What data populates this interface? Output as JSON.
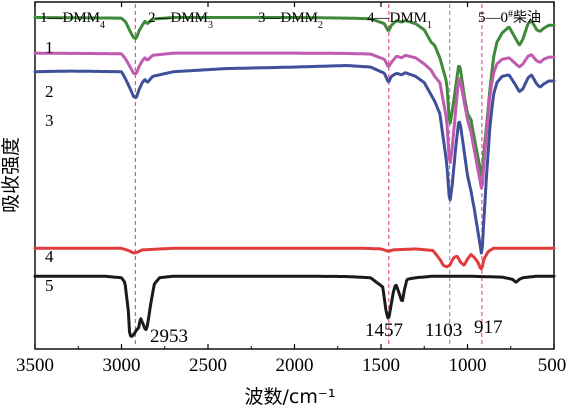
{
  "chart_data": {
    "type": "line",
    "xlabel": "波数/cm⁻¹",
    "ylabel": "吸收强度",
    "xlim": [
      3500,
      500
    ],
    "x_reversed": true,
    "xticks": [
      3500,
      3000,
      2500,
      2000,
      1500,
      1000,
      500
    ],
    "grid": false,
    "legend": [
      {
        "num": "1",
        "name": "DMM",
        "sub": "4"
      },
      {
        "num": "2",
        "name": "DMM",
        "sub": "3"
      },
      {
        "num": "3",
        "name": "DMM",
        "sub": "2"
      },
      {
        "num": "4",
        "name": "DMM",
        "sub": "1"
      },
      {
        "num": "5",
        "name": "0",
        "sup": "#",
        "suffix": "柴油"
      }
    ],
    "reference_lines": [
      {
        "x": 2920,
        "color": "#e0458a"
      },
      {
        "x": 1455,
        "color": "#e0458a"
      },
      {
        "x": 1103,
        "color": "#9a7fe0"
      },
      {
        "x": 917,
        "color": "#e0458a"
      }
    ],
    "peak_labels": [
      {
        "text": "2953",
        "x": 2953
      },
      {
        "text": "1457",
        "x": 1457
      },
      {
        "text": "1103",
        "x": 1103
      },
      {
        "text": "917",
        "x": 917
      }
    ],
    "series": [
      {
        "label": "1",
        "color": "#3f8a3a",
        "baseline": 0.95,
        "points": [
          [
            3500,
            0.95
          ],
          [
            3000,
            0.948
          ],
          [
            2975,
            0.935
          ],
          [
            2950,
            0.905
          ],
          [
            2930,
            0.885
          ],
          [
            2915,
            0.882
          ],
          [
            2900,
            0.905
          ],
          [
            2880,
            0.925
          ],
          [
            2865,
            0.938
          ],
          [
            2850,
            0.93
          ],
          [
            2820,
            0.945
          ],
          [
            2700,
            0.95
          ],
          [
            2000,
            0.95
          ],
          [
            1700,
            0.948
          ],
          [
            1560,
            0.946
          ],
          [
            1480,
            0.93
          ],
          [
            1457,
            0.905
          ],
          [
            1440,
            0.925
          ],
          [
            1410,
            0.94
          ],
          [
            1380,
            0.935
          ],
          [
            1360,
            0.94
          ],
          [
            1300,
            0.93
          ],
          [
            1250,
            0.91
          ],
          [
            1210,
            0.87
          ],
          [
            1190,
            0.86
          ],
          [
            1160,
            0.82
          ],
          [
            1140,
            0.78
          ],
          [
            1120,
            0.74
          ],
          [
            1103,
            0.6
          ],
          [
            1090,
            0.64
          ],
          [
            1070,
            0.72
          ],
          [
            1050,
            0.8
          ],
          [
            1040,
            0.78
          ],
          [
            1020,
            0.7
          ],
          [
            1000,
            0.64
          ],
          [
            980,
            0.62
          ],
          [
            960,
            0.56
          ],
          [
            940,
            0.5
          ],
          [
            920,
            0.44
          ],
          [
            917,
            0.43
          ],
          [
            905,
            0.52
          ],
          [
            890,
            0.6
          ],
          [
            870,
            0.72
          ],
          [
            850,
            0.82
          ],
          [
            830,
            0.87
          ],
          [
            800,
            0.9
          ],
          [
            760,
            0.92
          ],
          [
            720,
            0.88
          ],
          [
            700,
            0.86
          ],
          [
            680,
            0.88
          ],
          [
            650,
            0.93
          ],
          [
            630,
            0.94
          ],
          [
            600,
            0.91
          ],
          [
            580,
            0.905
          ],
          [
            560,
            0.915
          ],
          [
            530,
            0.925
          ],
          [
            500,
            0.925
          ]
        ]
      },
      {
        "label": "2",
        "color": "#c05bb0",
        "baseline": 0.835,
        "points": [
          [
            3500,
            0.835
          ],
          [
            3000,
            0.833
          ],
          [
            2975,
            0.815
          ],
          [
            2950,
            0.79
          ],
          [
            2930,
            0.77
          ],
          [
            2915,
            0.768
          ],
          [
            2900,
            0.79
          ],
          [
            2880,
            0.81
          ],
          [
            2865,
            0.82
          ],
          [
            2850,
            0.812
          ],
          [
            2820,
            0.828
          ],
          [
            2700,
            0.835
          ],
          [
            2000,
            0.835
          ],
          [
            1700,
            0.834
          ],
          [
            1560,
            0.832
          ],
          [
            1480,
            0.815
          ],
          [
            1457,
            0.79
          ],
          [
            1440,
            0.805
          ],
          [
            1410,
            0.825
          ],
          [
            1380,
            0.82
          ],
          [
            1360,
            0.828
          ],
          [
            1300,
            0.82
          ],
          [
            1250,
            0.8
          ],
          [
            1210,
            0.78
          ],
          [
            1190,
            0.76
          ],
          [
            1160,
            0.74
          ],
          [
            1140,
            0.68
          ],
          [
            1120,
            0.62
          ],
          [
            1103,
            0.47
          ],
          [
            1090,
            0.52
          ],
          [
            1070,
            0.64
          ],
          [
            1050,
            0.76
          ],
          [
            1040,
            0.74
          ],
          [
            1020,
            0.68
          ],
          [
            1000,
            0.62
          ],
          [
            980,
            0.58
          ],
          [
            960,
            0.52
          ],
          [
            940,
            0.46
          ],
          [
            920,
            0.4
          ],
          [
            917,
            0.39
          ],
          [
            905,
            0.48
          ],
          [
            890,
            0.58
          ],
          [
            870,
            0.7
          ],
          [
            850,
            0.77
          ],
          [
            830,
            0.8
          ],
          [
            800,
            0.815
          ],
          [
            760,
            0.82
          ],
          [
            720,
            0.8
          ],
          [
            700,
            0.79
          ],
          [
            680,
            0.8
          ],
          [
            650,
            0.825
          ],
          [
            630,
            0.83
          ],
          [
            600,
            0.81
          ],
          [
            580,
            0.805
          ],
          [
            560,
            0.815
          ],
          [
            530,
            0.822
          ],
          [
            500,
            0.822
          ]
        ]
      },
      {
        "label": "3",
        "color": "#3f4f9a",
        "baseline": 0.775,
        "points": [
          [
            3500,
            0.775
          ],
          [
            3300,
            0.777
          ],
          [
            3000,
            0.775
          ],
          [
            2975,
            0.75
          ],
          [
            2950,
            0.72
          ],
          [
            2930,
            0.695
          ],
          [
            2915,
            0.69
          ],
          [
            2900,
            0.715
          ],
          [
            2880,
            0.74
          ],
          [
            2865,
            0.75
          ],
          [
            2850,
            0.74
          ],
          [
            2820,
            0.76
          ],
          [
            2700,
            0.775
          ],
          [
            2400,
            0.785
          ],
          [
            2000,
            0.79
          ],
          [
            1700,
            0.795
          ],
          [
            1560,
            0.79
          ],
          [
            1480,
            0.77
          ],
          [
            1457,
            0.74
          ],
          [
            1440,
            0.76
          ],
          [
            1410,
            0.77
          ],
          [
            1380,
            0.765
          ],
          [
            1360,
            0.772
          ],
          [
            1300,
            0.76
          ],
          [
            1250,
            0.74
          ],
          [
            1210,
            0.7
          ],
          [
            1190,
            0.68
          ],
          [
            1160,
            0.64
          ],
          [
            1140,
            0.56
          ],
          [
            1120,
            0.48
          ],
          [
            1103,
            0.35
          ],
          [
            1090,
            0.4
          ],
          [
            1070,
            0.52
          ],
          [
            1050,
            0.62
          ],
          [
            1040,
            0.6
          ],
          [
            1020,
            0.52
          ],
          [
            1000,
            0.44
          ],
          [
            980,
            0.39
          ],
          [
            960,
            0.33
          ],
          [
            940,
            0.26
          ],
          [
            920,
            0.19
          ],
          [
            917,
            0.18
          ],
          [
            905,
            0.3
          ],
          [
            890,
            0.44
          ],
          [
            870,
            0.6
          ],
          [
            850,
            0.7
          ],
          [
            830,
            0.74
          ],
          [
            800,
            0.76
          ],
          [
            760,
            0.765
          ],
          [
            720,
            0.73
          ],
          [
            700,
            0.71
          ],
          [
            680,
            0.72
          ],
          [
            650,
            0.755
          ],
          [
            630,
            0.765
          ],
          [
            600,
            0.735
          ],
          [
            580,
            0.725
          ],
          [
            560,
            0.735
          ],
          [
            530,
            0.745
          ],
          [
            500,
            0.745
          ]
        ]
      },
      {
        "label": "4",
        "color": "#e23b3b",
        "baseline": 0.205,
        "points": [
          [
            3500,
            0.205
          ],
          [
            3000,
            0.205
          ],
          [
            2960,
            0.198
          ],
          [
            2930,
            0.19
          ],
          [
            2910,
            0.192
          ],
          [
            2880,
            0.2
          ],
          [
            2700,
            0.205
          ],
          [
            2000,
            0.205
          ],
          [
            1600,
            0.205
          ],
          [
            1500,
            0.203
          ],
          [
            1457,
            0.195
          ],
          [
            1430,
            0.2
          ],
          [
            1300,
            0.203
          ],
          [
            1200,
            0.198
          ],
          [
            1160,
            0.17
          ],
          [
            1140,
            0.15
          ],
          [
            1120,
            0.145
          ],
          [
            1103,
            0.15
          ],
          [
            1080,
            0.175
          ],
          [
            1060,
            0.18
          ],
          [
            1040,
            0.16
          ],
          [
            1020,
            0.15
          ],
          [
            1000,
            0.17
          ],
          [
            980,
            0.185
          ],
          [
            960,
            0.175
          ],
          [
            940,
            0.16
          ],
          [
            925,
            0.14
          ],
          [
            917,
            0.138
          ],
          [
            905,
            0.17
          ],
          [
            880,
            0.195
          ],
          [
            850,
            0.205
          ],
          [
            700,
            0.205
          ],
          [
            600,
            0.205
          ],
          [
            500,
            0.205
          ]
        ]
      },
      {
        "label": "5",
        "color": "#1a1a1a",
        "baseline": 0.115,
        "points": [
          [
            3500,
            0.115
          ],
          [
            3100,
            0.115
          ],
          [
            3000,
            0.11
          ],
          [
            2980,
            0.095
          ],
          [
            2960,
            0.0
          ],
          [
            2953,
            -0.075
          ],
          [
            2940,
            -0.08
          ],
          [
            2925,
            -0.07
          ],
          [
            2915,
            -0.06
          ],
          [
            2900,
            -0.05
          ],
          [
            2890,
            -0.02
          ],
          [
            2875,
            -0.04
          ],
          [
            2860,
            -0.06
          ],
          [
            2850,
            -0.045
          ],
          [
            2830,
            0.03
          ],
          [
            2810,
            0.09
          ],
          [
            2780,
            0.11
          ],
          [
            2700,
            0.115
          ],
          [
            2400,
            0.115
          ],
          [
            2000,
            0.115
          ],
          [
            1700,
            0.114
          ],
          [
            1560,
            0.11
          ],
          [
            1490,
            0.08
          ],
          [
            1470,
            0.0
          ],
          [
            1457,
            -0.025
          ],
          [
            1445,
            0.01
          ],
          [
            1430,
            0.06
          ],
          [
            1415,
            0.09
          ],
          [
            1395,
            0.06
          ],
          [
            1378,
            0.03
          ],
          [
            1365,
            0.07
          ],
          [
            1350,
            0.105
          ],
          [
            1300,
            0.11
          ],
          [
            1200,
            0.115
          ],
          [
            1000,
            0.115
          ],
          [
            800,
            0.112
          ],
          [
            740,
            0.105
          ],
          [
            720,
            0.095
          ],
          [
            700,
            0.105
          ],
          [
            680,
            0.11
          ],
          [
            600,
            0.115
          ],
          [
            500,
            0.115
          ]
        ]
      }
    ]
  }
}
